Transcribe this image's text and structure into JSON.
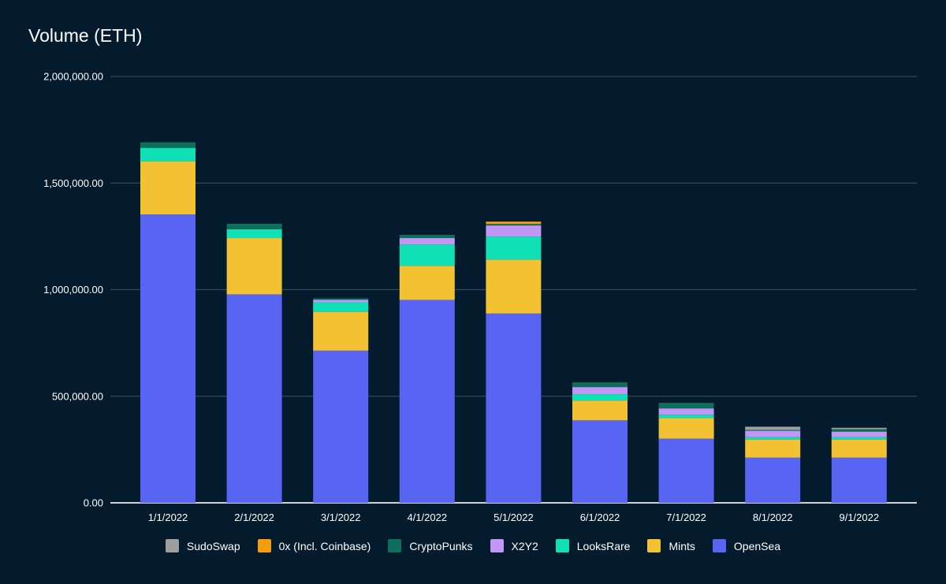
{
  "chart_data": {
    "type": "bar",
    "stacked": true,
    "title": "Volume (ETH)",
    "xlabel": "",
    "ylabel": "",
    "ylim": [
      0,
      2000000
    ],
    "y_ticks": [
      "0.00",
      "500,000.00",
      "1,000,000.00",
      "1,500,000.00",
      "2,000,000.00"
    ],
    "y_tick_values": [
      0,
      500000,
      1000000,
      1500000,
      2000000
    ],
    "grid": true,
    "legend_position": "bottom",
    "categories": [
      "1/1/2022",
      "2/1/2022",
      "3/1/2022",
      "4/1/2022",
      "5/1/2022",
      "6/1/2022",
      "7/1/2022",
      "8/1/2022",
      "9/1/2022"
    ],
    "series": [
      {
        "name": "OpenSea",
        "color": "#5865f2",
        "values": [
          1353000,
          978000,
          714000,
          952000,
          888000,
          387000,
          301000,
          212000,
          212000
        ]
      },
      {
        "name": "Mints",
        "color": "#f2c232",
        "values": [
          249000,
          264000,
          182000,
          160000,
          253000,
          93000,
          97000,
          85000,
          85000
        ]
      },
      {
        "name": "LooksRare",
        "color": "#0fe0b5",
        "values": [
          63000,
          41000,
          45000,
          100000,
          108000,
          30000,
          15000,
          11000,
          11000
        ]
      },
      {
        "name": "X2Y2",
        "color": "#c197f5",
        "values": [
          0,
          0,
          11000,
          30000,
          52000,
          33000,
          30000,
          30000,
          26000
        ]
      },
      {
        "name": "CryptoPunks",
        "color": "#0e6e5c",
        "values": [
          26000,
          26000,
          7000,
          15000,
          7000,
          22000,
          26000,
          4000,
          11000
        ]
      },
      {
        "name": "0x (Incl. Coinbase)",
        "color": "#f59d0b",
        "values": [
          0,
          0,
          0,
          0,
          11000,
          0,
          0,
          0,
          0
        ]
      },
      {
        "name": "SudoSwap",
        "color": "#9e9e9e",
        "values": [
          0,
          0,
          0,
          0,
          0,
          0,
          0,
          15000,
          7000
        ]
      }
    ],
    "legend_order": [
      "SudoSwap",
      "0x (Incl. Coinbase)",
      "CryptoPunks",
      "X2Y2",
      "LooksRare",
      "Mints",
      "OpenSea"
    ]
  }
}
